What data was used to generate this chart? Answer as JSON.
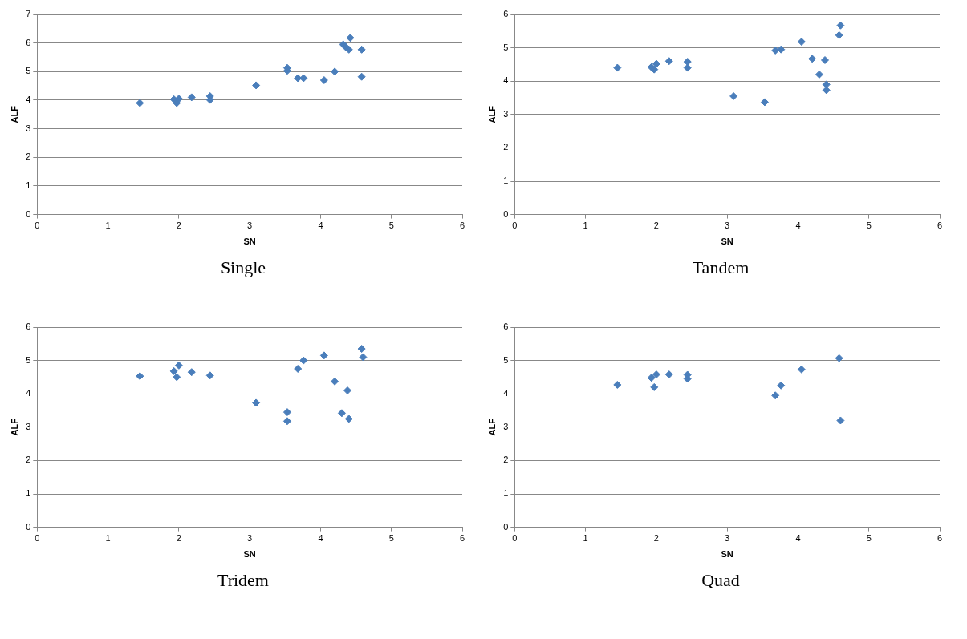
{
  "chart_data": [
    {
      "type": "scatter",
      "title": "Single",
      "xlabel": "SN",
      "ylabel": "ALF",
      "xlim": [
        0,
        6
      ],
      "xticks": [
        0,
        1,
        2,
        3,
        4,
        5,
        6
      ],
      "ylim": [
        0,
        7
      ],
      "yticks": [
        0,
        1,
        2,
        3,
        4,
        5,
        6,
        7
      ],
      "grid": "y",
      "marker": "diamond",
      "legend": false,
      "series": [
        {
          "color": "#4a7ebb",
          "x": [
            1.45,
            1.93,
            1.97,
            2.0,
            2.18,
            2.44,
            2.44,
            3.09,
            3.53,
            3.53,
            3.68,
            3.76,
            4.05,
            4.2,
            4.32,
            4.36,
            4.4,
            4.42,
            4.58,
            4.58
          ],
          "values": [
            3.9,
            4.03,
            3.9,
            4.05,
            4.1,
            4.01,
            4.14,
            4.52,
            5.13,
            5.03,
            4.77,
            4.77,
            4.7,
            5.0,
            5.95,
            5.85,
            5.77,
            6.18,
            5.77,
            4.82
          ]
        }
      ]
    },
    {
      "type": "scatter",
      "title": "Tandem",
      "xlabel": "SN",
      "ylabel": "ALF",
      "xlim": [
        0,
        6
      ],
      "xticks": [
        0,
        1,
        2,
        3,
        4,
        5,
        6
      ],
      "ylim": [
        0,
        6
      ],
      "yticks": [
        0,
        1,
        2,
        3,
        4,
        5,
        6
      ],
      "grid": "y",
      "marker": "diamond",
      "legend": false,
      "series": [
        {
          "color": "#4a7ebb",
          "x": [
            1.45,
            1.93,
            1.97,
            2.0,
            2.18,
            2.44,
            2.44,
            3.09,
            3.53,
            3.68,
            3.76,
            4.05,
            4.2,
            4.3,
            4.38,
            4.4,
            4.4,
            4.58,
            4.6
          ],
          "values": [
            4.4,
            4.42,
            4.35,
            4.52,
            4.6,
            4.58,
            4.4,
            3.55,
            3.37,
            4.92,
            4.95,
            5.18,
            4.67,
            4.2,
            4.63,
            3.9,
            3.73,
            5.38,
            5.67
          ]
        }
      ]
    },
    {
      "type": "scatter",
      "title": "Tridem",
      "xlabel": "SN",
      "ylabel": "ALF",
      "xlim": [
        0,
        6
      ],
      "xticks": [
        0,
        1,
        2,
        3,
        4,
        5,
        6
      ],
      "ylim": [
        0,
        6
      ],
      "yticks": [
        0,
        1,
        2,
        3,
        4,
        5,
        6
      ],
      "grid": "y",
      "marker": "diamond",
      "legend": false,
      "series": [
        {
          "color": "#4a7ebb",
          "x": [
            1.45,
            1.93,
            1.97,
            2.0,
            2.18,
            2.44,
            3.09,
            3.53,
            3.53,
            3.68,
            3.76,
            4.05,
            4.2,
            4.3,
            4.38,
            4.4,
            4.58,
            4.6
          ],
          "values": [
            4.53,
            4.68,
            4.5,
            4.85,
            4.65,
            4.55,
            3.73,
            3.45,
            3.18,
            4.75,
            5.0,
            5.15,
            4.37,
            3.42,
            4.1,
            3.25,
            5.35,
            5.1
          ]
        }
      ]
    },
    {
      "type": "scatter",
      "title": "Quad",
      "xlabel": "SN",
      "ylabel": "ALF",
      "xlim": [
        0,
        6
      ],
      "xticks": [
        0,
        1,
        2,
        3,
        4,
        5,
        6
      ],
      "ylim": [
        0,
        6
      ],
      "yticks": [
        0,
        1,
        2,
        3,
        4,
        5,
        6
      ],
      "grid": "y",
      "marker": "diamond",
      "legend": false,
      "series": [
        {
          "color": "#4a7ebb",
          "x": [
            1.45,
            1.93,
            1.97,
            2.0,
            2.18,
            2.44,
            2.44,
            3.68,
            3.76,
            4.05,
            4.58,
            4.6
          ],
          "values": [
            4.27,
            4.48,
            4.2,
            4.58,
            4.58,
            4.57,
            4.45,
            3.95,
            4.25,
            4.73,
            5.07,
            3.2
          ]
        }
      ]
    }
  ]
}
